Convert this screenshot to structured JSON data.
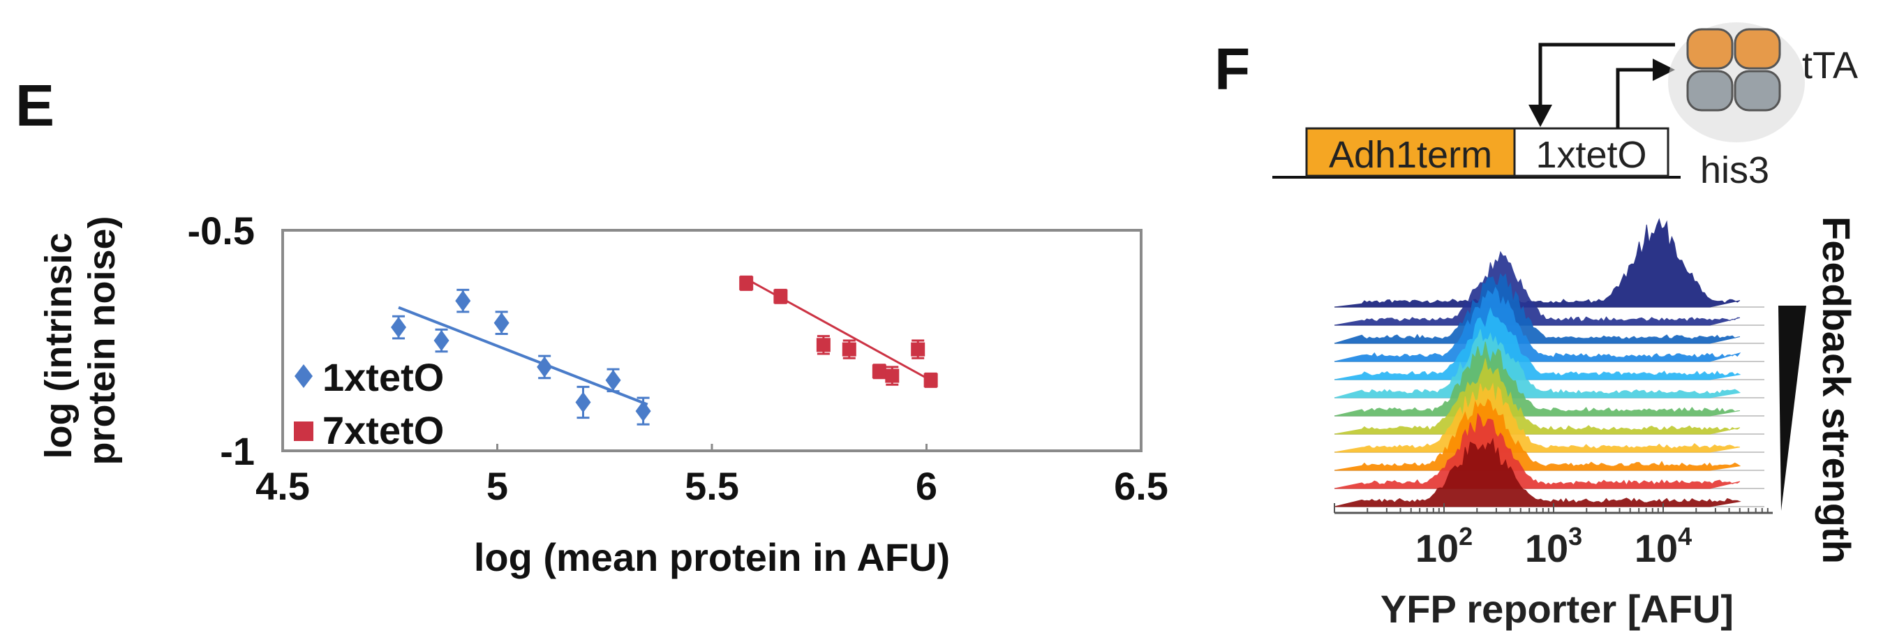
{
  "panels": {
    "e_label": "E",
    "f_label": "F"
  },
  "colors": {
    "series_1xtetO": "#4a7cc9",
    "series_7xtetO": "#cc3344",
    "adh1term_box": "#f5a623",
    "axis": "#8a8a8a"
  },
  "chart_data": [
    {
      "type": "scatter",
      "title": "",
      "xlabel": "log (mean protein in AFU)",
      "ylabel": [
        "log (intrinsic",
        "protein noise)"
      ],
      "xlim": [
        4.5,
        6.5
      ],
      "ylim": [
        -1,
        -0.5
      ],
      "x_ticks": [
        4.5,
        5,
        5.5,
        6,
        6.5
      ],
      "x_tick_labels": [
        "4.5",
        "5",
        "5.5",
        "6",
        "6.5"
      ],
      "y_ticks": [
        -0.5,
        -1
      ],
      "y_tick_labels": [
        "-0.5",
        "-1"
      ],
      "grid": false,
      "legend_position": "bottom-left",
      "series": [
        {
          "name": "1xtetO",
          "marker": "diamond",
          "x": [
            4.77,
            4.87,
            4.92,
            5.01,
            5.11,
            5.2,
            5.27,
            5.34
          ],
          "y": [
            -0.72,
            -0.75,
            -0.66,
            -0.71,
            -0.81,
            -0.89,
            -0.84,
            -0.91
          ],
          "yerr": [
            0.025,
            0.025,
            0.025,
            0.025,
            0.025,
            0.035,
            0.025,
            0.03
          ],
          "fit": {
            "x": [
              4.77,
              5.35
            ],
            "y": [
              -0.675,
              -0.895
            ]
          }
        },
        {
          "name": "7xtetO",
          "marker": "square",
          "x": [
            5.58,
            5.66,
            5.76,
            5.82,
            5.89,
            5.92,
            5.98,
            6.01
          ],
          "y": [
            -0.62,
            -0.65,
            -0.76,
            -0.77,
            -0.82,
            -0.83,
            -0.77,
            -0.84
          ],
          "yerr": [
            0.015,
            0.015,
            0.02,
            0.02,
            0.015,
            0.02,
            0.02,
            0.015
          ],
          "fit": {
            "x": [
              5.58,
              6.0
            ],
            "y": [
              -0.61,
              -0.835
            ]
          }
        }
      ]
    },
    {
      "type": "area",
      "title": "",
      "xlabel": "YFP reporter [AFU]",
      "ylabel": "Feedback strength",
      "x_scale": "log",
      "xlim": [
        10,
        100000
      ],
      "x_ticks": [
        100,
        1000,
        10000
      ],
      "x_tick_labels": [
        {
          "base": "10",
          "exp": "2"
        },
        {
          "base": "10",
          "exp": "3"
        },
        {
          "base": "10",
          "exp": "4"
        }
      ],
      "grid": false,
      "ridge_count": 12,
      "ridge_colors": [
        "#1a237e",
        "#283593",
        "#1565c0",
        "#1e88e5",
        "#29b6f6",
        "#4dd0e1",
        "#66bb6a",
        "#c0ca33",
        "#fbc02d",
        "#fb8c00",
        "#e53935",
        "#8e0f0f"
      ],
      "ridge_peaks": [
        9000,
        320,
        300,
        280,
        270,
        260,
        250,
        240,
        235,
        230,
        225,
        220
      ]
    }
  ],
  "diagram": {
    "promoter_box_1": "Adh1term",
    "promoter_box_2": "1xtetO",
    "gene_label": "his3",
    "protein_label": "tTA"
  }
}
